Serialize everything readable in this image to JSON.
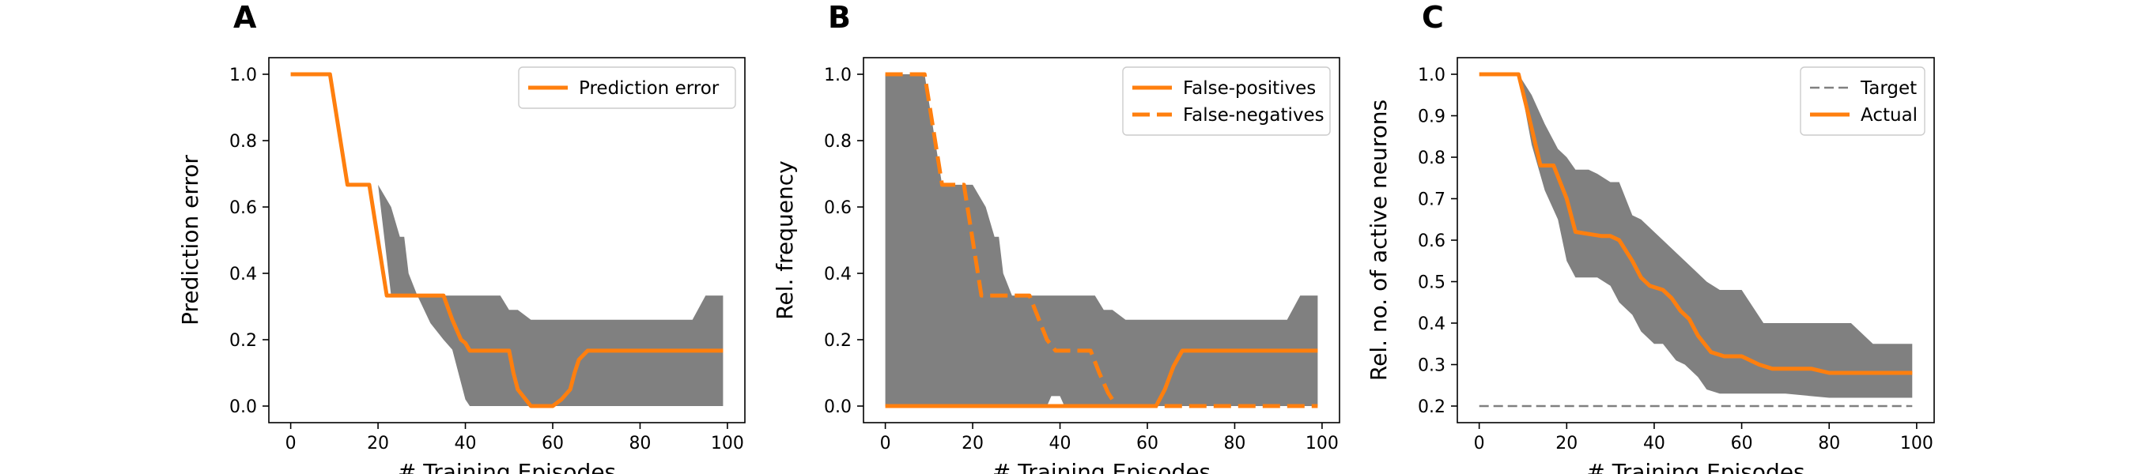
{
  "colors": {
    "line": "#ff7f0e",
    "band": "#808080",
    "target": "#808080"
  },
  "chart_data": [
    {
      "type": "line",
      "panel_label": "A",
      "xlabel": "# Training Episodes",
      "ylabel": "Prediction error",
      "xlim": [
        -5,
        104
      ],
      "ylim": [
        -0.05,
        1.05
      ],
      "xticks": [
        0,
        20,
        40,
        60,
        80,
        100
      ],
      "xtick_labels": [
        "0",
        "20",
        "40",
        "60",
        "80",
        "100"
      ],
      "yticks": [
        0.0,
        0.2,
        0.4,
        0.6,
        0.8,
        1.0
      ],
      "ytick_labels": [
        "0.0",
        "0.2",
        "0.4",
        "0.6",
        "0.8",
        "1.0"
      ],
      "legend_position": "upper-right",
      "band": {
        "x": [
          0,
          9,
          13,
          20,
          23,
          25,
          26,
          27,
          29,
          32,
          35,
          37,
          38,
          40,
          41,
          45,
          48,
          50,
          52,
          55,
          60,
          70,
          80,
          92,
          95,
          99
        ],
        "upper": [
          1.0,
          1.0,
          0.667,
          0.667,
          0.6,
          0.51,
          0.51,
          0.4,
          0.333,
          0.333,
          0.333,
          0.333,
          0.333,
          0.333,
          0.333,
          0.333,
          0.333,
          0.29,
          0.29,
          0.26,
          0.26,
          0.26,
          0.26,
          0.26,
          0.333,
          0.333
        ],
        "lower": [
          1.0,
          1.0,
          0.667,
          0.667,
          0.333,
          0.333,
          0.333,
          0.333,
          0.333,
          0.25,
          0.2,
          0.17,
          0.12,
          0.02,
          0.0,
          0.0,
          0.0,
          0.0,
          0.0,
          0.0,
          0.0,
          0.0,
          0.0,
          0.0,
          0.0,
          0.0
        ]
      },
      "series": [
        {
          "name": "Prediction error",
          "style": "solid",
          "x": [
            0,
            9,
            13,
            18,
            22,
            35,
            37,
            39,
            40,
            41,
            50,
            51,
            52,
            55,
            56,
            59,
            60,
            62,
            64,
            65,
            66,
            68,
            69,
            99
          ],
          "y": [
            1.0,
            1.0,
            0.667,
            0.667,
            0.333,
            0.333,
            0.26,
            0.2,
            0.19,
            0.167,
            0.167,
            0.1,
            0.05,
            0.0,
            0.0,
            0.0,
            0.0,
            0.02,
            0.05,
            0.1,
            0.14,
            0.167,
            0.167,
            0.167
          ]
        }
      ]
    },
    {
      "type": "line",
      "panel_label": "B",
      "xlabel": "# Training Episodes",
      "ylabel": "Rel. frequency",
      "xlim": [
        -5,
        104
      ],
      "ylim": [
        -0.05,
        1.05
      ],
      "xticks": [
        0,
        20,
        40,
        60,
        80,
        100
      ],
      "xtick_labels": [
        "0",
        "20",
        "40",
        "60",
        "80",
        "100"
      ],
      "yticks": [
        0.0,
        0.2,
        0.4,
        0.6,
        0.8,
        1.0
      ],
      "ytick_labels": [
        "0.0",
        "0.2",
        "0.4",
        "0.6",
        "0.8",
        "1.0"
      ],
      "legend_position": "upper-right",
      "band": {
        "x": [
          0,
          9,
          13,
          20,
          23,
          25,
          26,
          27,
          29,
          32,
          35,
          37,
          38,
          40,
          41,
          45,
          48,
          50,
          52,
          55,
          60,
          70,
          80,
          92,
          95,
          99
        ],
        "upper": [
          1.0,
          1.0,
          0.667,
          0.667,
          0.6,
          0.51,
          0.51,
          0.4,
          0.333,
          0.333,
          0.333,
          0.333,
          0.333,
          0.333,
          0.333,
          0.333,
          0.333,
          0.29,
          0.29,
          0.26,
          0.26,
          0.26,
          0.26,
          0.26,
          0.333,
          0.333
        ],
        "lower": [
          0.0,
          0.0,
          0.0,
          0.0,
          0.0,
          0.0,
          0.0,
          0.0,
          0.0,
          0.0,
          0.0,
          0.0,
          0.03,
          0.03,
          0.0,
          0.0,
          0.0,
          0.0,
          0.0,
          0.0,
          0.0,
          0.0,
          0.0,
          0.0,
          0.0,
          0.0
        ]
      },
      "series": [
        {
          "name": "False-positives",
          "style": "solid",
          "x": [
            0,
            62,
            64,
            66,
            68,
            69,
            99
          ],
          "y": [
            0.0,
            0.0,
            0.05,
            0.12,
            0.167,
            0.167,
            0.167
          ]
        },
        {
          "name": "False-negatives",
          "style": "dashed",
          "x": [
            0,
            9,
            13,
            18,
            20,
            22,
            33,
            37,
            39,
            43,
            47,
            49,
            51,
            53,
            99
          ],
          "y": [
            1.0,
            1.0,
            0.667,
            0.667,
            0.5,
            0.333,
            0.333,
            0.2,
            0.167,
            0.167,
            0.167,
            0.1,
            0.04,
            0.0,
            0.0
          ]
        }
      ]
    },
    {
      "type": "line",
      "panel_label": "C",
      "xlabel": "# Training Episodes",
      "ylabel": "Rel. no. of active neurons",
      "xlim": [
        -5,
        104
      ],
      "ylim": [
        0.16,
        1.04
      ],
      "xticks": [
        0,
        20,
        40,
        60,
        80,
        100
      ],
      "xtick_labels": [
        "0",
        "20",
        "40",
        "60",
        "80",
        "100"
      ],
      "yticks": [
        0.2,
        0.3,
        0.4,
        0.5,
        0.6,
        0.7,
        0.8,
        0.9,
        1.0
      ],
      "ytick_labels": [
        "0.2",
        "0.3",
        "0.4",
        "0.5",
        "0.6",
        "0.7",
        "0.8",
        "0.9",
        "1.0"
      ],
      "legend_position": "upper-right",
      "band": {
        "x": [
          0,
          9,
          12,
          15,
          18,
          20,
          22,
          25,
          27,
          30,
          32,
          35,
          37,
          40,
          42,
          45,
          47,
          50,
          52,
          55,
          60,
          65,
          70,
          80,
          85,
          90,
          99
        ],
        "upper": [
          1.0,
          1.0,
          0.95,
          0.88,
          0.82,
          0.8,
          0.77,
          0.77,
          0.76,
          0.74,
          0.74,
          0.66,
          0.65,
          0.62,
          0.6,
          0.57,
          0.55,
          0.52,
          0.5,
          0.48,
          0.48,
          0.4,
          0.4,
          0.4,
          0.4,
          0.35,
          0.35
        ],
        "lower": [
          1.0,
          1.0,
          0.83,
          0.72,
          0.65,
          0.55,
          0.51,
          0.51,
          0.51,
          0.49,
          0.45,
          0.42,
          0.38,
          0.35,
          0.35,
          0.31,
          0.3,
          0.27,
          0.24,
          0.23,
          0.23,
          0.23,
          0.23,
          0.22,
          0.22,
          0.22,
          0.22
        ]
      },
      "series": [
        {
          "name": "Target",
          "style": "thin-dashed",
          "x": [
            0,
            99
          ],
          "y": [
            0.2,
            0.2
          ]
        },
        {
          "name": "Actual",
          "style": "solid",
          "x": [
            0,
            9,
            12,
            14,
            17,
            20,
            22,
            28,
            30,
            32,
            35,
            37,
            39,
            42,
            44,
            46,
            48,
            50,
            53,
            56,
            60,
            64,
            67,
            70,
            76,
            80,
            84,
            90,
            99
          ],
          "y": [
            1.0,
            1.0,
            0.87,
            0.78,
            0.78,
            0.7,
            0.62,
            0.61,
            0.61,
            0.6,
            0.55,
            0.51,
            0.49,
            0.48,
            0.46,
            0.43,
            0.41,
            0.37,
            0.33,
            0.32,
            0.32,
            0.3,
            0.29,
            0.29,
            0.29,
            0.28,
            0.28,
            0.28,
            0.28
          ]
        }
      ]
    }
  ]
}
